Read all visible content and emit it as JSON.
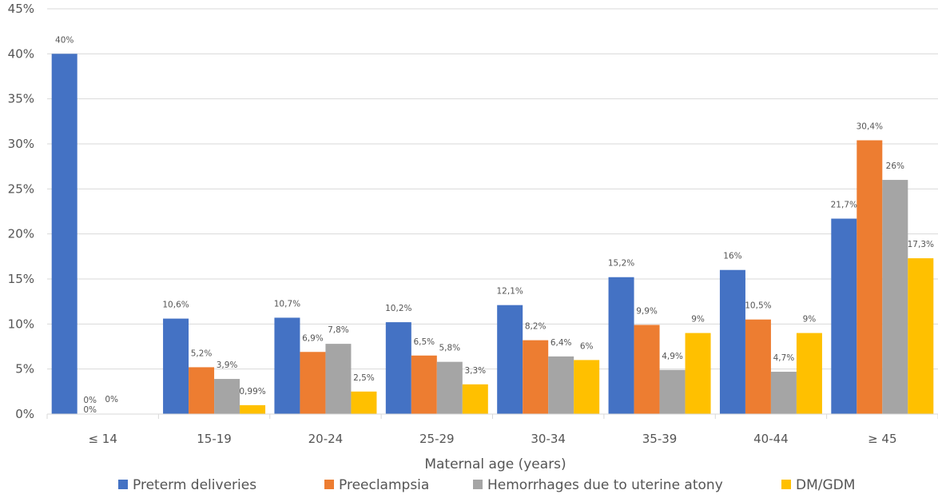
{
  "chart_data": {
    "type": "bar",
    "xlabel": "Maternal age (years)",
    "ylabel": "",
    "ylim": [
      0,
      45
    ],
    "yticks": [
      "0%",
      "5%",
      "10%",
      "15%",
      "20%",
      "25%",
      "30%",
      "35%",
      "40%",
      "45%"
    ],
    "categories": [
      "≤ 14",
      "15-19",
      "20-24",
      "25-29",
      "30-34",
      "35-39",
      "40-44",
      "≥ 45"
    ],
    "legend_position": "bottom",
    "grid": true,
    "series": [
      {
        "name": "Preterm deliveries",
        "color": "#4472C4",
        "values": [
          40,
          10.6,
          10.7,
          10.2,
          12.1,
          15.2,
          16,
          21.7
        ],
        "labels": [
          "40%",
          "10,6%",
          "10,7%",
          "10,2%",
          "12,1%",
          "15,2%",
          "16%",
          "21,7%"
        ]
      },
      {
        "name": "Preeclampsia",
        "color": "#ED7D31",
        "values": [
          0,
          5.2,
          6.9,
          6.5,
          8.2,
          9.9,
          10.5,
          30.4
        ],
        "labels": [
          "0%",
          "5,2%",
          "6,9%",
          "6,5%",
          "8,2%",
          "9,9%",
          "10,5%",
          "30,4%"
        ]
      },
      {
        "name": "Hemorrhages due to uterine atony",
        "color": "#A5A5A5",
        "values": [
          0,
          3.9,
          7.8,
          5.8,
          6.4,
          4.9,
          4.7,
          26
        ],
        "labels": [
          "0%",
          "3,9%",
          "7,8%",
          "5,8%",
          "6,4%",
          "4,9%",
          "4,7%",
          "26%"
        ]
      },
      {
        "name": "DM/GDM",
        "color": "#FFC000",
        "values": [
          null,
          0.99,
          2.5,
          3.3,
          6,
          9,
          9,
          17.3
        ],
        "labels": [
          "",
          "0,99%",
          "2,5%",
          "3,3%",
          "6%",
          "9%",
          "9%",
          "17,3%"
        ]
      }
    ]
  }
}
